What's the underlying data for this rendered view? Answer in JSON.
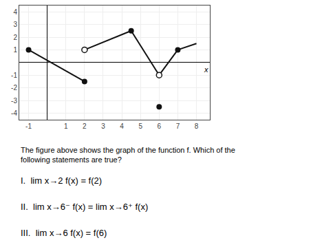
{
  "chart_data": {
    "type": "line",
    "xlabel": "x",
    "xlim": [
      -1.5,
      8.7
    ],
    "ylim": [
      -4.5,
      4.5
    ],
    "xticks": [
      -1,
      1,
      2,
      3,
      4,
      5,
      6,
      7,
      8
    ],
    "yticks": [
      -4,
      -3,
      -2,
      -1,
      1,
      2,
      3,
      4
    ],
    "grid": true,
    "series": [
      {
        "type": "line",
        "x": [
          -1,
          2
        ],
        "values": [
          1,
          -1.5
        ],
        "color": "#111111"
      },
      {
        "type": "line",
        "x": [
          2,
          4.5
        ],
        "values": [
          1,
          2.5
        ],
        "color": "#111111"
      },
      {
        "type": "line",
        "x": [
          4.5,
          6
        ],
        "values": [
          2.5,
          -1
        ],
        "color": "#111111"
      },
      {
        "type": "line",
        "x": [
          6,
          7
        ],
        "values": [
          -1,
          1
        ],
        "color": "#111111"
      },
      {
        "type": "line",
        "x": [
          7,
          8
        ],
        "values": [
          1,
          1.5
        ],
        "color": "#111111"
      },
      {
        "type": "scatter",
        "marker": "filled",
        "x": [
          -1,
          2,
          4.5,
          6,
          7
        ],
        "values": [
          1,
          -1.5,
          2.5,
          -3.5,
          1
        ],
        "color": "#111111"
      },
      {
        "type": "scatter",
        "marker": "open",
        "x": [
          2,
          6
        ],
        "values": [
          1,
          -1
        ],
        "color": "#111111"
      }
    ],
    "annotations": [
      "The figure above shows the graph of the function f. Which of the following statements are true?",
      "I.  lim x→2 f(x) = f(2)",
      "II.  lim x→6⁻ f(x) = lim x→6⁺ f(x)",
      "III.  lim x→6 f(x) = f(6)"
    ]
  }
}
